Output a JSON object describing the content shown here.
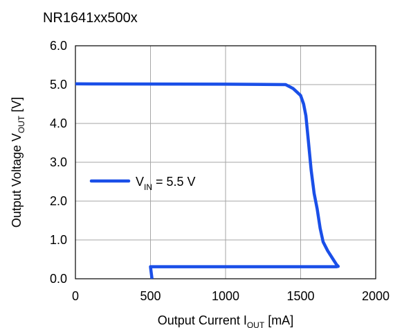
{
  "chart_data": {
    "type": "line",
    "title": "NR1641xx500x",
    "xlabel": {
      "main": "Output Current I",
      "sub": "OUT",
      "suffix": " [mA]"
    },
    "ylabel": {
      "main": "Output Voltage V",
      "sub": "OUT",
      "suffix": " [V]"
    },
    "xlim": [
      0,
      2000
    ],
    "ylim": [
      0,
      6
    ],
    "xticks": [
      "0",
      "500",
      "1000",
      "1500",
      "2000"
    ],
    "yticks": [
      "0.0",
      "1.0",
      "2.0",
      "3.0",
      "4.0",
      "5.0",
      "6.0"
    ],
    "grid": true,
    "legend_placement": "center-left",
    "series": [
      {
        "name": {
          "main": "V",
          "sub": "IN",
          "suffix": " = 5.5 V"
        },
        "color": "#1a4fe8",
        "x": [
          0,
          1000,
          1400,
          1450,
          1500,
          1520,
          1535,
          1550,
          1570,
          1590,
          1610,
          1630,
          1650,
          1680,
          1700,
          1720,
          1740,
          1750,
          1740,
          1000,
          500,
          505,
          510
        ],
        "y": [
          5.02,
          5.01,
          5.0,
          4.9,
          4.72,
          4.5,
          4.2,
          3.6,
          2.8,
          2.2,
          1.8,
          1.3,
          0.95,
          0.72,
          0.6,
          0.48,
          0.36,
          0.32,
          0.31,
          0.31,
          0.31,
          0.15,
          0.0
        ]
      }
    ]
  }
}
